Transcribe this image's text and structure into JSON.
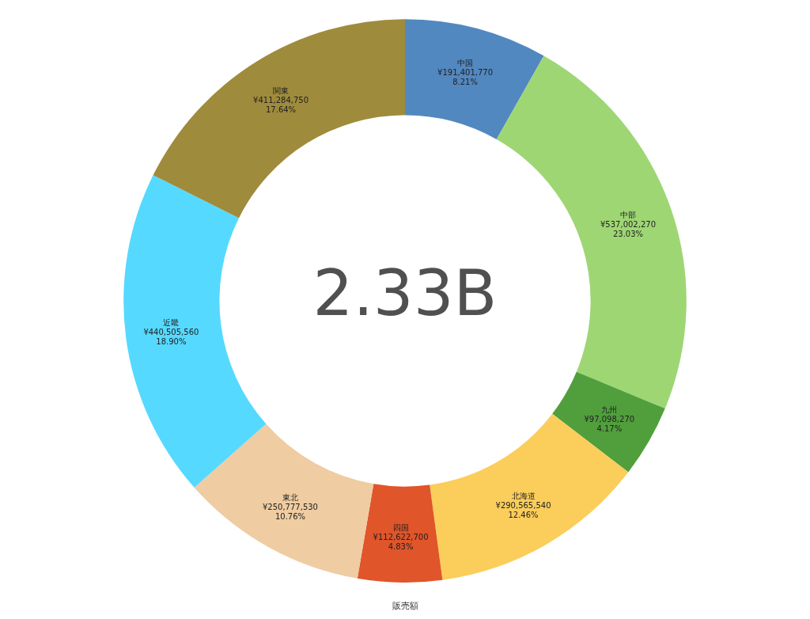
{
  "chart_data": {
    "type": "donut",
    "categories": [
      "中国",
      "中部",
      "九州",
      "北海道",
      "四国",
      "東北",
      "近畿",
      "関東"
    ],
    "values": [
      191401770,
      537002270,
      97098270,
      290565540,
      112622700,
      250777530,
      440505560,
      411284750
    ],
    "colors": [
      "#5288c0",
      "#9ed674",
      "#509f3c",
      "#fbcd5a",
      "#e0552a",
      "#efcca2",
      "#56d9ff",
      "#9f8b3c"
    ],
    "value_labels": [
      "¥191,401,770\n8.21%",
      "¥537,002,270\n23.03%",
      "¥97,098,270\n4.17%",
      "¥290,565,540\n12.46%",
      "¥112,622,700\n4.83%",
      "¥250,777,530\n10.76%",
      "¥440,505,560\n18.90%",
      "¥411,284,750\n17.64%"
    ],
    "annotations": [
      "2.33B"
    ],
    "xlabel": "販売額",
    "legend": false
  }
}
